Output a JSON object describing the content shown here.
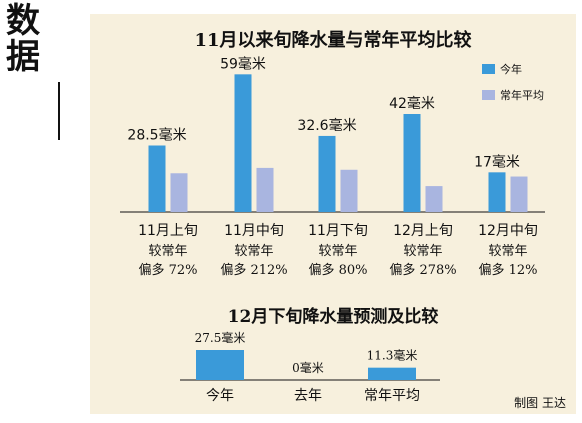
{
  "side_label": [
    "数",
    "据"
  ],
  "credit": "制图  王达",
  "chart_data": [
    {
      "type": "bar",
      "title": "11月以来旬降水量与常年平均比较",
      "categories": [
        "11月上旬",
        "11月中旬",
        "11月下旬",
        "12月上旬",
        "12月中旬"
      ],
      "value_labels": [
        "28.5毫米",
        "59毫米",
        "32.6毫米",
        "42毫米",
        "17毫米"
      ],
      "comparison_prefix": "较常年",
      "comparison_notes": [
        "偏多 72%",
        "偏多 212%",
        "偏多 80%",
        "偏多 278%",
        "偏多 12%"
      ],
      "series": [
        {
          "name": "今年",
          "color": "#3a9ad9",
          "values": [
            28.5,
            59,
            32.6,
            42,
            17
          ]
        },
        {
          "name": "常年平均",
          "color": "#a9b5e0",
          "values": [
            16.6,
            18.9,
            18.1,
            11.1,
            15.2
          ]
        }
      ],
      "ylim": [
        0,
        60
      ],
      "grid": false,
      "legend": "top-right"
    },
    {
      "type": "bar",
      "title": "12月下旬降水量预测及比较",
      "categories": [
        "今年",
        "去年",
        "常年平均"
      ],
      "value_labels": [
        "27.5毫米",
        "0毫米",
        "11.3毫米"
      ],
      "values": [
        27.5,
        0,
        11.3
      ],
      "color": "#3a9ad9",
      "ylim": [
        0,
        27.5
      ],
      "grid": false
    }
  ]
}
